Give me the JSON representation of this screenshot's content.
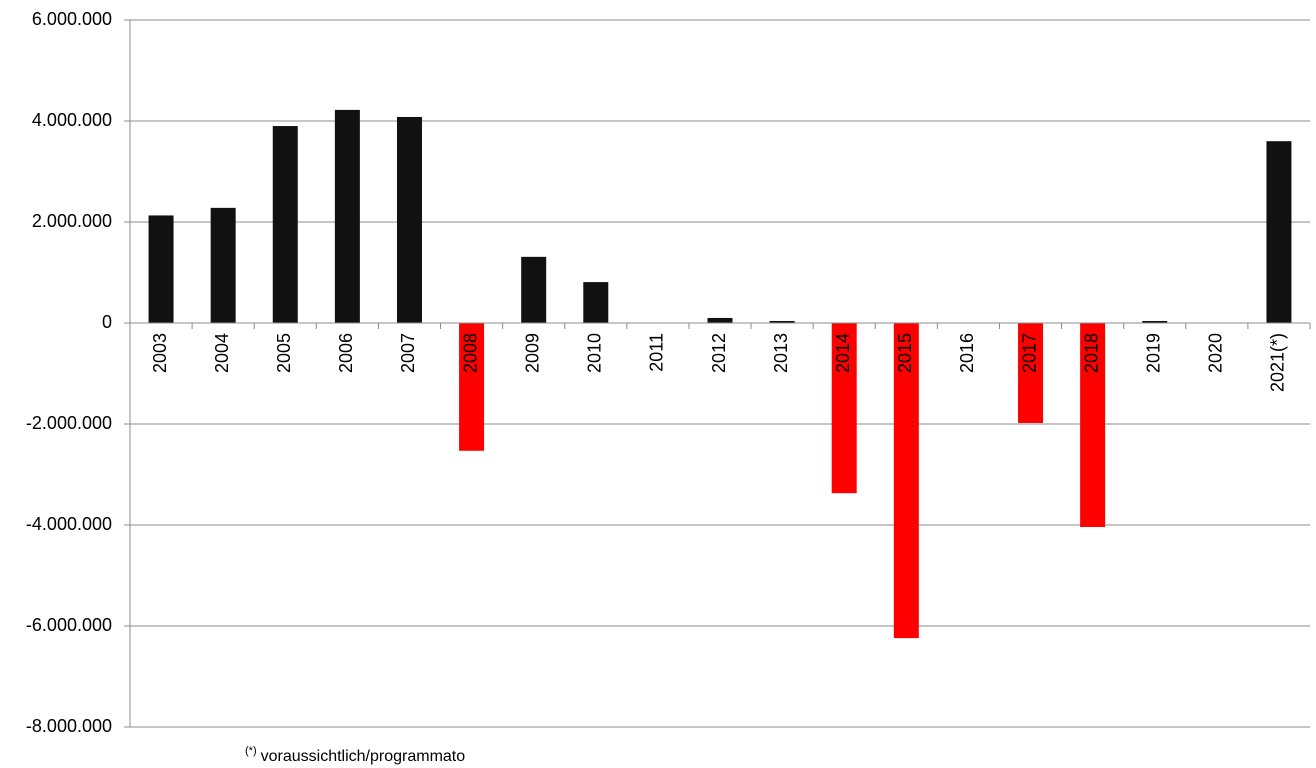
{
  "chart_data": {
    "type": "bar",
    "categories": [
      "2003",
      "2004",
      "2005",
      "2006",
      "2007",
      "2008",
      "2009",
      "2010",
      "2011",
      "2012",
      "2013",
      "2014",
      "2015",
      "2016",
      "2017",
      "2018",
      "2019",
      "2020",
      "2021(*)"
    ],
    "values": [
      2130000,
      2280000,
      3900000,
      4220000,
      4080000,
      -2530000,
      1310000,
      810000,
      0,
      100000,
      40000,
      -3370000,
      -6240000,
      0,
      -1980000,
      -4040000,
      40000,
      0,
      3600000
    ],
    "positive_color": "#111111",
    "negative_color": "#ff0000",
    "ylim": [
      -8000000,
      6000000
    ],
    "yticks": [
      {
        "value": -8000000,
        "label": "-8.000.000"
      },
      {
        "value": -6000000,
        "label": "-6.000.000"
      },
      {
        "value": -4000000,
        "label": "-4.000.000"
      },
      {
        "value": -2000000,
        "label": "-2.000.000"
      },
      0,
      {
        "value": 2000000,
        "label": "2.000.000"
      },
      {
        "value": 4000000,
        "label": "4.000.000"
      },
      {
        "value": 6000000,
        "label": "6.000.000"
      }
    ],
    "grid": true,
    "note": {
      "marker": "(*)",
      "text": "voraussichtlich/programmato"
    }
  }
}
